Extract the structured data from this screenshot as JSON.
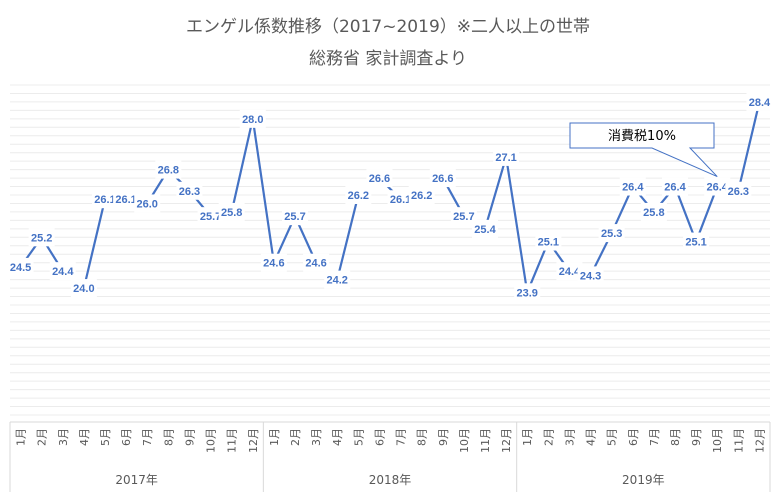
{
  "chart_data": {
    "type": "line",
    "title": "エンゲル係数推移（2017~2019）※二人以上の世帯",
    "subtitle": "総務省 家計調査より",
    "years": [
      "2017年",
      "2018年",
      "2019年"
    ],
    "months": [
      "1月",
      "2月",
      "3月",
      "4月",
      "5月",
      "6月",
      "7月",
      "8月",
      "9月",
      "10月",
      "11月",
      "12月"
    ],
    "values": [
      24.5,
      25.2,
      24.4,
      24.0,
      26.1,
      26.1,
      26.0,
      26.8,
      26.3,
      25.7,
      25.8,
      28.0,
      24.6,
      25.7,
      24.6,
      24.2,
      26.2,
      26.6,
      26.1,
      26.2,
      26.6,
      25.7,
      25.4,
      27.1,
      23.9,
      25.1,
      24.4,
      24.3,
      25.3,
      26.4,
      25.8,
      26.4,
      25.1,
      26.4,
      26.3,
      28.4
    ],
    "value_label_format": "0.0",
    "ylim": [
      21.0,
      28.8
    ],
    "grid": true,
    "line_color": "#4472C4",
    "annotation": {
      "text": "消費税10%",
      "target": "2019年10月"
    }
  }
}
